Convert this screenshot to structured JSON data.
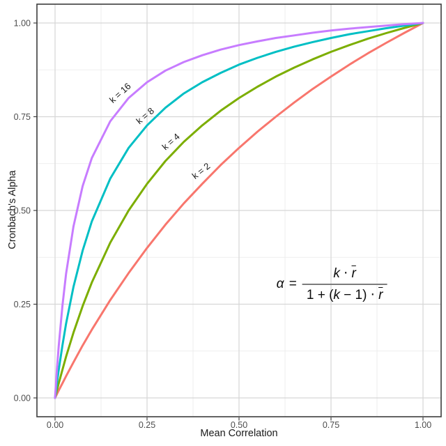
{
  "chart_data": {
    "type": "line",
    "title": "",
    "xlabel": "Mean Correlation",
    "ylabel": "Cronbach's Alpha",
    "xlim": [
      0,
      1
    ],
    "ylim": [
      0,
      1
    ],
    "grid": "major and minor, light gray on white panel with dark border",
    "legend": "none (direct labels on curves)",
    "x_tick_values": [
      0,
      0.25,
      0.5,
      0.75,
      1
    ],
    "x_tick_labels": [
      "0.00",
      "0.25",
      "0.50",
      "0.75",
      "1.00"
    ],
    "y_tick_values": [
      0,
      0.25,
      0.5,
      0.75,
      1
    ],
    "y_tick_labels": [
      "0.00",
      "0.25",
      "0.50",
      "0.75",
      "1.00"
    ],
    "x_minor_values": [
      0.125,
      0.375,
      0.625,
      0.875
    ],
    "y_minor_values": [
      0.125,
      0.375,
      0.625,
      0.875
    ],
    "colors": {
      "major_grid": "#D6D6D6",
      "minor_grid": "#EAEAEA",
      "panel_border": "#3C3C3C",
      "tick_mark": "#333333",
      "axis_text": "#4D4D4D",
      "axis_title": "#1A1A1A",
      "curve_label": "#1A1A1A",
      "background": "#FFFFFF"
    },
    "x": [
      0,
      0.005,
      0.01,
      0.02,
      0.03,
      0.05,
      0.075,
      0.1,
      0.15,
      0.2,
      0.25,
      0.3,
      0.35,
      0.4,
      0.45,
      0.5,
      0.55,
      0.6,
      0.65,
      0.7,
      0.75,
      0.8,
      0.85,
      0.9,
      0.95,
      1
    ],
    "series": [
      {
        "name": "k = 2",
        "k": 2,
        "color": "#F8766D",
        "label": {
          "text": "k = 2",
          "x": 0.398,
          "y": 0.604,
          "angle": -38
        },
        "values": [
          0,
          0.01,
          0.02,
          0.039,
          0.058,
          0.095,
          0.14,
          0.182,
          0.261,
          0.333,
          0.4,
          0.462,
          0.519,
          0.571,
          0.621,
          0.667,
          0.71,
          0.75,
          0.788,
          0.824,
          0.857,
          0.889,
          0.919,
          0.947,
          0.974,
          1
        ]
      },
      {
        "name": "k = 4",
        "k": 4,
        "color": "#7CAE00",
        "label": {
          "text": "k = 4",
          "x": 0.316,
          "y": 0.682,
          "angle": -41
        },
        "values": [
          0,
          0.02,
          0.039,
          0.075,
          0.11,
          0.174,
          0.245,
          0.308,
          0.414,
          0.5,
          0.571,
          0.632,
          0.683,
          0.727,
          0.766,
          0.8,
          0.83,
          0.857,
          0.881,
          0.903,
          0.923,
          0.941,
          0.958,
          0.973,
          0.987,
          1
        ]
      },
      {
        "name": "k = 8",
        "k": 8,
        "color": "#00BFC4",
        "label": {
          "text": "k = 8",
          "x": 0.246,
          "y": 0.751,
          "angle": -40
        },
        "values": [
          0,
          0.039,
          0.075,
          0.14,
          0.198,
          0.296,
          0.393,
          0.471,
          0.585,
          0.667,
          0.727,
          0.774,
          0.812,
          0.842,
          0.867,
          0.889,
          0.907,
          0.923,
          0.937,
          0.949,
          0.96,
          0.97,
          0.978,
          0.986,
          0.993,
          1
        ]
      },
      {
        "name": "k = 16",
        "k": 16,
        "color": "#C77CFF",
        "label": {
          "text": "k = 16",
          "x": 0.178,
          "y": 0.812,
          "angle": -42
        },
        "values": [
          0,
          0.074,
          0.139,
          0.246,
          0.331,
          0.457,
          0.565,
          0.64,
          0.738,
          0.8,
          0.842,
          0.873,
          0.896,
          0.914,
          0.929,
          0.941,
          0.951,
          0.96,
          0.967,
          0.974,
          0.98,
          0.985,
          0.989,
          0.993,
          0.997,
          1
        ]
      }
    ],
    "annotation": {
      "formula_plain": "α = k ⋅ r̄ / (1 + (k − 1) ⋅ r̄)",
      "center_x": 0.752,
      "center_y": 0.303,
      "lhs": "α",
      "equals": "=",
      "numerator": [
        {
          "t": "k",
          "i": true
        },
        {
          "t": " ⋅ ",
          "i": false
        },
        {
          "t": "r",
          "i": true,
          "bar": true
        }
      ],
      "denominator": [
        {
          "t": "1 + (",
          "i": false
        },
        {
          "t": "k",
          "i": true
        },
        {
          "t": " − 1) ⋅ ",
          "i": false
        },
        {
          "t": "r",
          "i": true,
          "bar": true
        }
      ]
    }
  }
}
